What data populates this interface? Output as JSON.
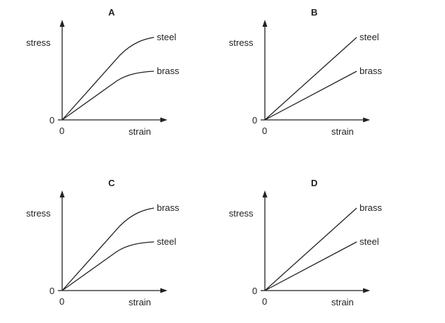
{
  "panels": [
    {
      "title": "A",
      "ylabel": "stress",
      "xlabel": "strain",
      "origin_y": "0",
      "origin_x": "0",
      "upper_line": "steel",
      "lower_line": "brass",
      "shape": "curved"
    },
    {
      "title": "B",
      "ylabel": "stress",
      "xlabel": "strain",
      "origin_y": "0",
      "origin_x": "0",
      "upper_line": "steel",
      "lower_line": "brass",
      "shape": "straight"
    },
    {
      "title": "C",
      "ylabel": "stress",
      "xlabel": "strain",
      "origin_y": "0",
      "origin_x": "0",
      "upper_line": "brass",
      "lower_line": "steel",
      "shape": "curved"
    },
    {
      "title": "D",
      "ylabel": "stress",
      "xlabel": "strain",
      "origin_y": "0",
      "origin_x": "0",
      "upper_line": "brass",
      "lower_line": "steel",
      "shape": "straight"
    }
  ]
}
